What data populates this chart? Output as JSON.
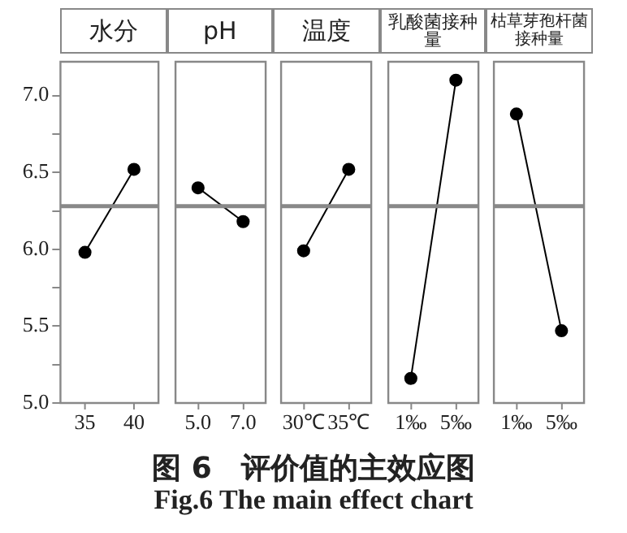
{
  "chart_data": [
    {
      "type": "line",
      "title": "水分",
      "categories": [
        "35",
        "40"
      ],
      "values": [
        5.98,
        6.52
      ],
      "color": "#000000",
      "marker": "circle",
      "ylim": [
        5,
        7.22
      ],
      "yticks": [
        {
          "value": 5,
          "label": "5.0"
        },
        {
          "value": 5.25,
          "label": null
        },
        {
          "value": 5.5,
          "label": "5.5"
        },
        {
          "value": 5.75,
          "label": null
        },
        {
          "value": 6,
          "label": "6.0"
        },
        {
          "value": 6.25,
          "label": null
        },
        {
          "value": 6.5,
          "label": "6.5"
        },
        {
          "value": 6.75,
          "label": null
        },
        {
          "value": 7,
          "label": "7.0"
        }
      ],
      "ref_lines": [
        {
          "axis": "y",
          "value": 6.28,
          "color": "#888888"
        }
      ],
      "annotations": [
        "图 6　评价值的主效应图",
        "Fig.6 The main effect chart"
      ]
    },
    {
      "type": "line",
      "title": "pH",
      "categories": [
        "5.0",
        "7.0"
      ],
      "values": [
        6.4,
        6.18
      ],
      "color": "#000000",
      "marker": "circle",
      "ylim": [
        5,
        7.22
      ],
      "tick_labels": "x",
      "ref_lines": [
        {
          "axis": "y",
          "value": 6.28,
          "color": "#888888"
        }
      ]
    },
    {
      "type": "line",
      "title": "温度",
      "categories": [
        "30℃",
        "35℃"
      ],
      "values": [
        5.99,
        6.52
      ],
      "color": "#000000",
      "marker": "circle",
      "ylim": [
        5,
        7.22
      ],
      "tick_labels": "x",
      "ref_lines": [
        {
          "axis": "y",
          "value": 6.28,
          "color": "#888888"
        }
      ]
    },
    {
      "type": "line",
      "title": "乳酸菌接种量",
      "categories": [
        "1‰",
        "5‰"
      ],
      "values": [
        5.16,
        7.1
      ],
      "color": "#000000",
      "marker": "circle",
      "ylim": [
        5,
        7.22
      ],
      "tick_labels": "x",
      "ref_lines": [
        {
          "axis": "y",
          "value": 6.28,
          "color": "#888888"
        }
      ]
    },
    {
      "type": "line",
      "title": "枯草芽孢杆菌接种量",
      "categories": [
        "1‰",
        "5‰"
      ],
      "values": [
        6.88,
        5.47
      ],
      "color": "#000000",
      "marker": "circle",
      "ylim": [
        5,
        7.22
      ],
      "tick_labels": "x",
      "ref_lines": [
        {
          "axis": "y",
          "value": 6.28,
          "color": "#888888"
        }
      ]
    }
  ]
}
